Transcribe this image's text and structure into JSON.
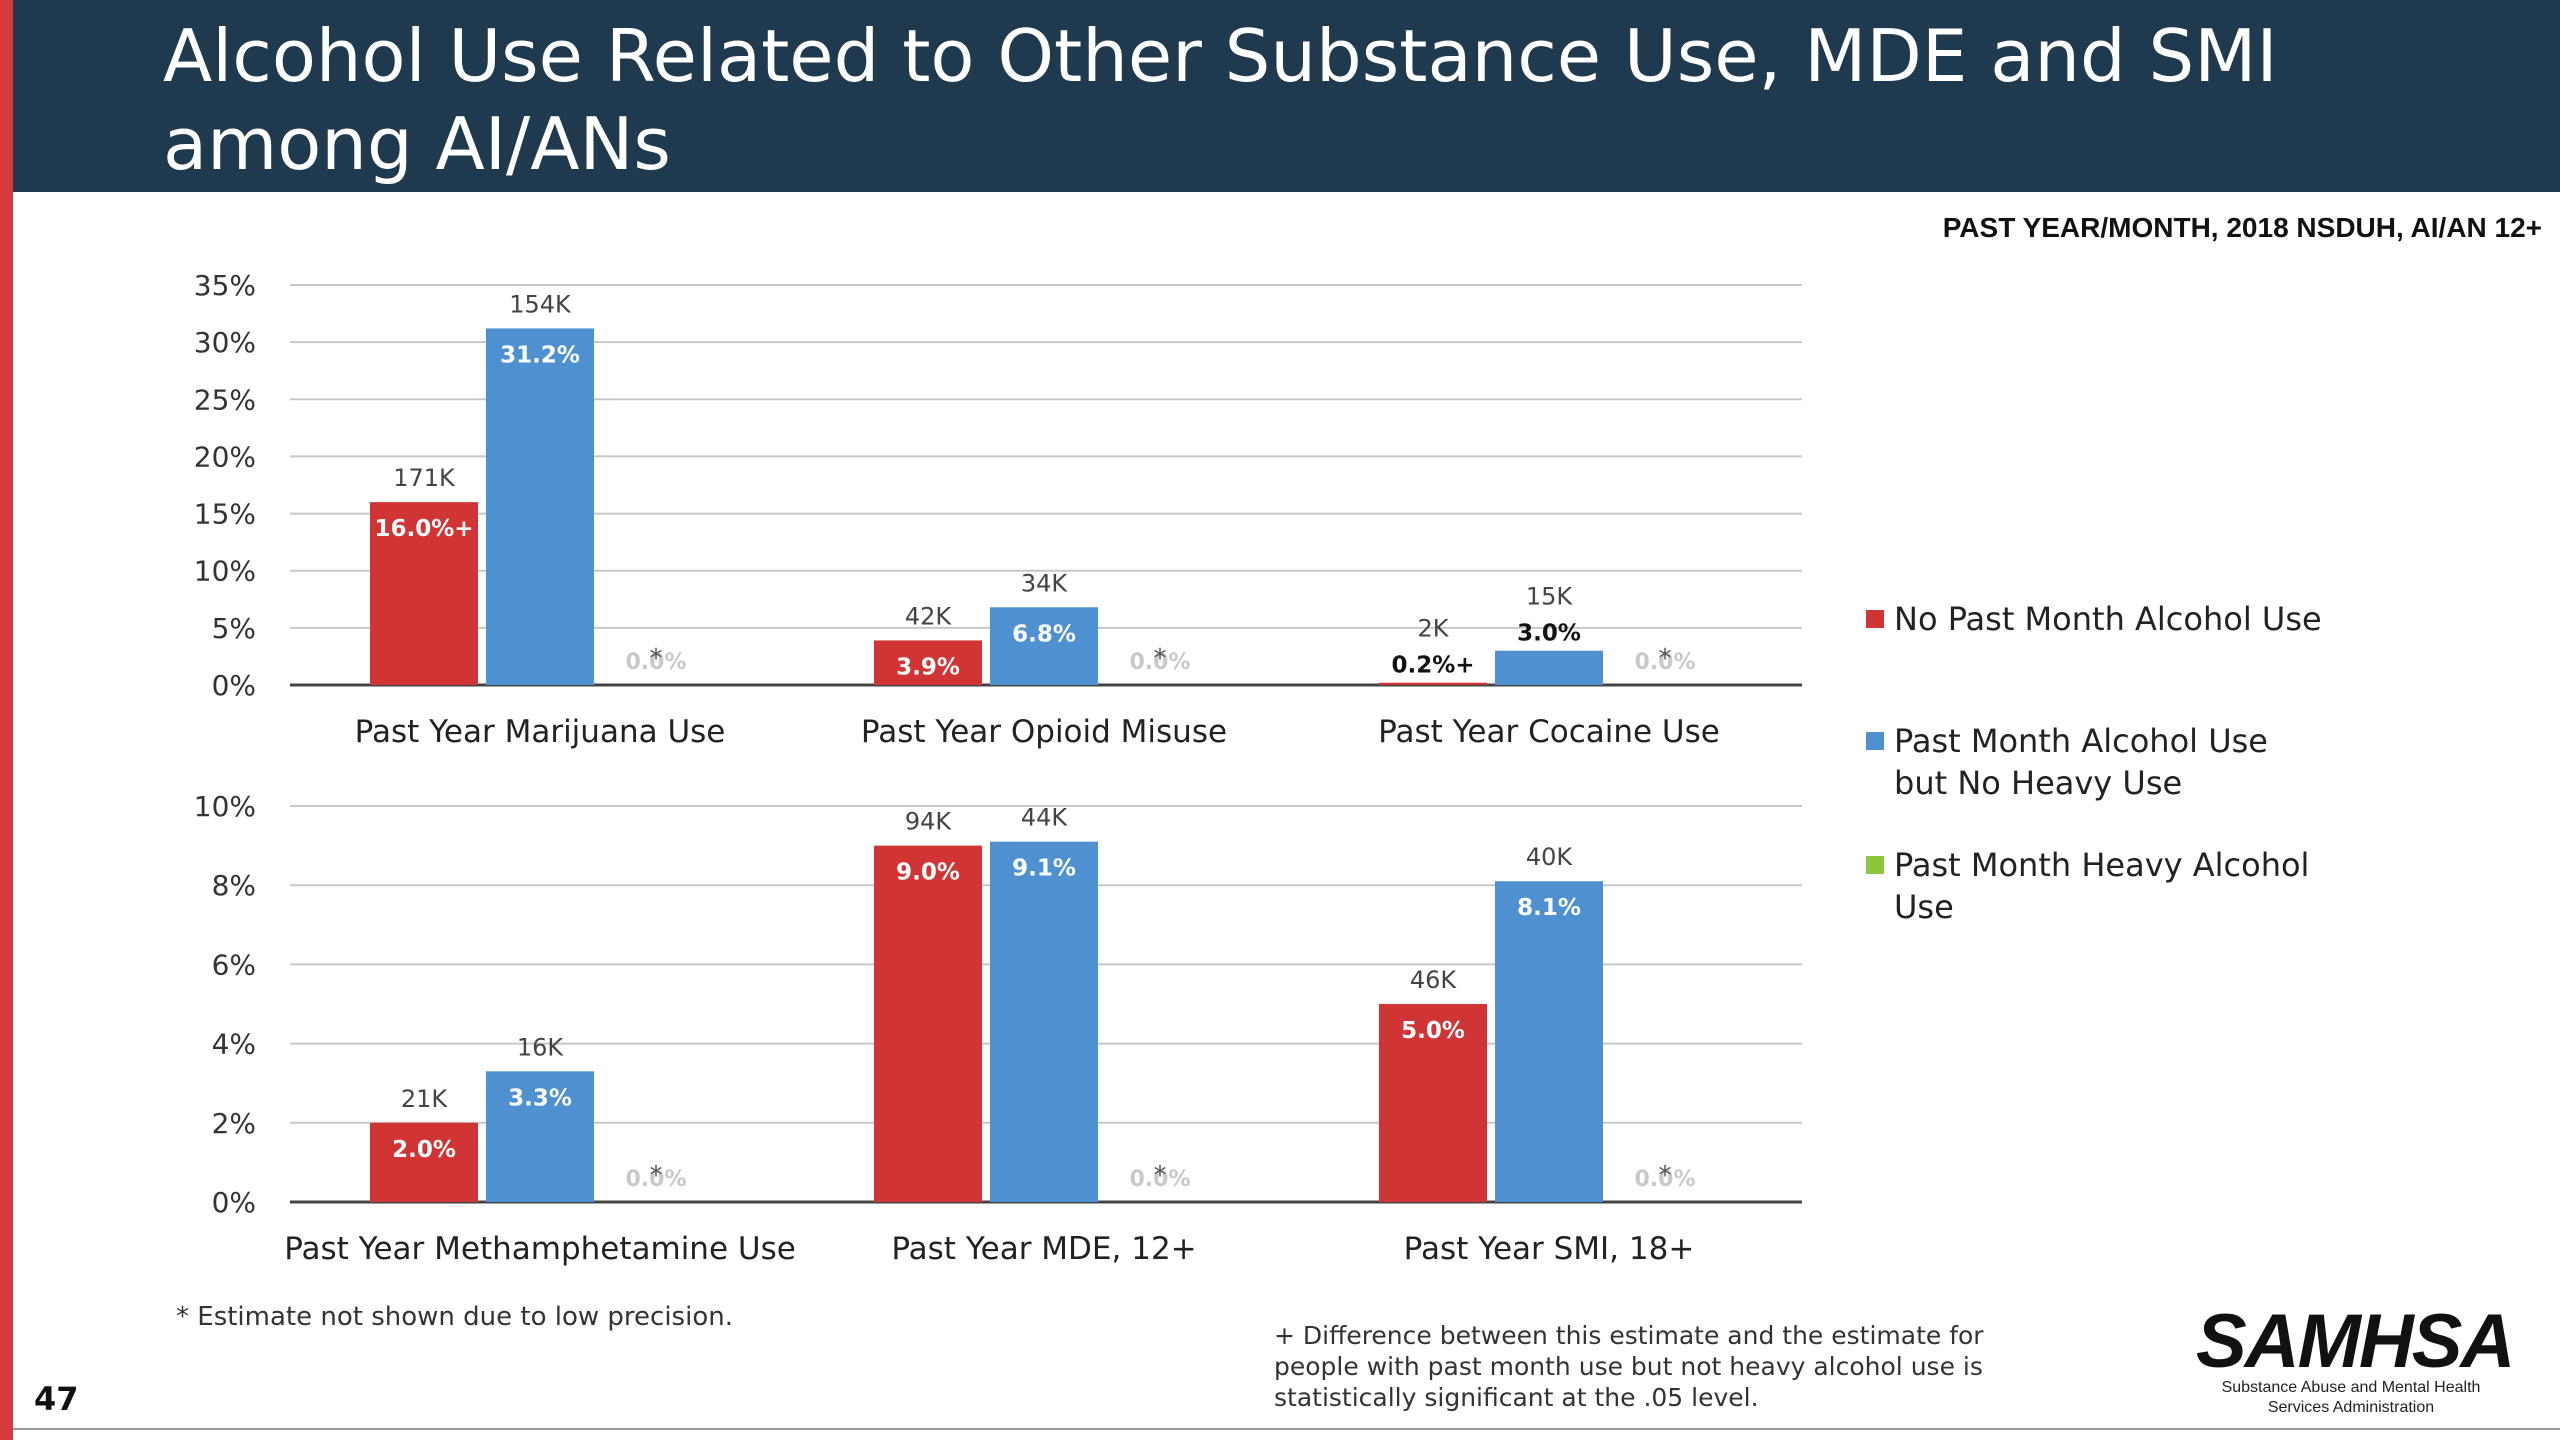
{
  "page": {
    "title": "Alcohol Use Related to Other Substance Use, MDE and SMI among AI/ANs",
    "subtitle": "PAST YEAR/MONTH, 2018 NSDUH, AI/AN 12+",
    "page_number": "47",
    "footnote_left": "* Estimate not shown due to low precision.",
    "footnote_right": "+ Difference between this estimate and the estimate for people with past month use but not heavy alcohol use is statistically significant at the .05 level.",
    "logo_text": "SAMHSA",
    "logo_tagline": "Substance Abuse and Mental Health Services Administration",
    "colors": {
      "header_bg": "#1f3a4f",
      "accent_red": "#d63b3b"
    }
  },
  "legend": [
    {
      "label": "No Past Month Alcohol Use",
      "color": "#d13434"
    },
    {
      "label": "Past Month Alcohol Use but No Heavy Use",
      "color": "#4f91d0"
    },
    {
      "label": "Past Month Heavy Alcohol Use",
      "color": "#8cc63f"
    }
  ],
  "chart_data": [
    {
      "type": "bar",
      "ylim": [
        0,
        35
      ],
      "yticks": [
        "0%",
        "5%",
        "10%",
        "15%",
        "20%",
        "25%",
        "30%",
        "35%"
      ],
      "grid": true,
      "categories": [
        "Past Year Marijuana Use",
        "Past Year Opioid Misuse",
        "Past Year Cocaine Use"
      ],
      "series": [
        {
          "name": "No Past Month Alcohol Use",
          "values": [
            16.0,
            3.9,
            0.2
          ],
          "labels": [
            "16.0%+",
            "3.9%",
            "0.2%+"
          ],
          "counts": [
            "171K",
            "42K",
            "2K"
          ]
        },
        {
          "name": "Past Month Alcohol Use but No Heavy Use",
          "values": [
            31.2,
            6.8,
            3.0
          ],
          "labels": [
            "31.2%",
            "6.8%",
            "3.0%"
          ],
          "counts": [
            "154K",
            "34K",
            "15K"
          ]
        },
        {
          "name": "Past Month Heavy Alcohol Use",
          "values": [
            0,
            0,
            0
          ],
          "labels": [
            "0.0%",
            "0.0%",
            "0.0%"
          ],
          "counts": [
            "*",
            "*",
            "*"
          ]
        }
      ]
    },
    {
      "type": "bar",
      "ylim": [
        0,
        10
      ],
      "yticks": [
        "0%",
        "2%",
        "4%",
        "6%",
        "8%",
        "10%"
      ],
      "grid": true,
      "categories": [
        "Past Year Methamphetamine Use",
        "Past Year MDE, 12+",
        "Past Year SMI, 18+"
      ],
      "series": [
        {
          "name": "No Past Month Alcohol Use",
          "values": [
            2.0,
            9.0,
            5.0
          ],
          "labels": [
            "2.0%",
            "9.0%",
            "5.0%"
          ],
          "counts": [
            "21K",
            "94K",
            "46K"
          ]
        },
        {
          "name": "Past Month Alcohol Use but No Heavy Use",
          "values": [
            3.3,
            9.1,
            8.1
          ],
          "labels": [
            "3.3%",
            "9.1%",
            "8.1%"
          ],
          "counts": [
            "16K",
            "44K",
            "40K"
          ]
        },
        {
          "name": "Past Month Heavy Alcohol Use",
          "values": [
            0,
            0,
            0
          ],
          "labels": [
            "0.0%",
            "0.0%",
            "0.0%"
          ],
          "counts": [
            "*",
            "*",
            "*"
          ]
        }
      ]
    }
  ]
}
